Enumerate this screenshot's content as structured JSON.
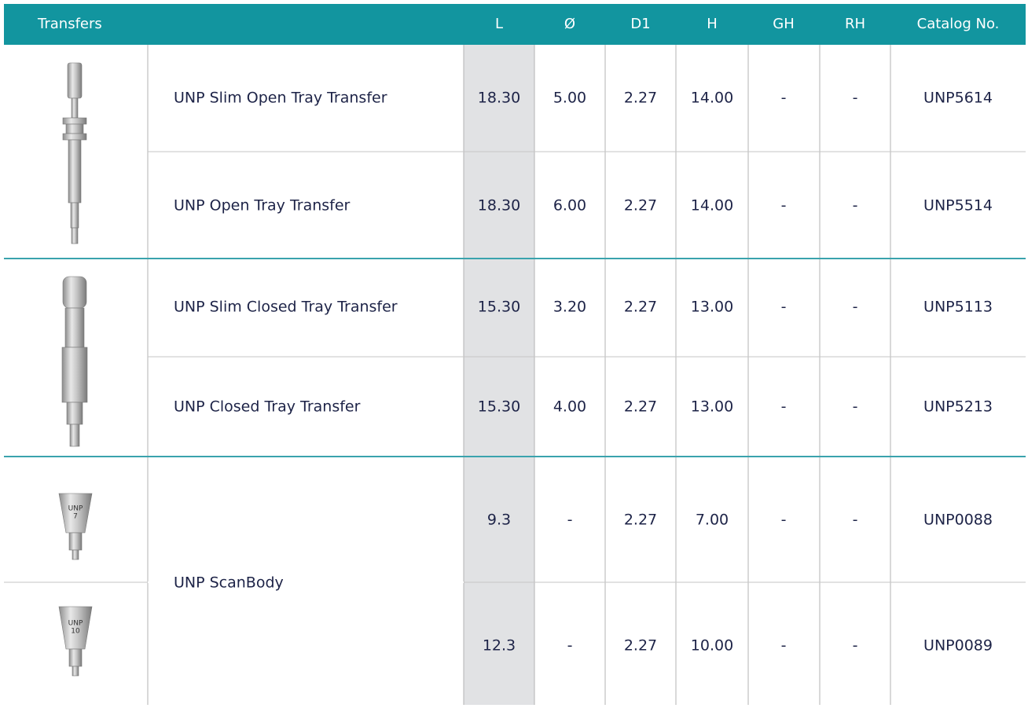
{
  "table": {
    "header": [
      "Transfers",
      "L",
      "Ø",
      "D1",
      "H",
      "GH",
      "RH",
      "Catalog No."
    ],
    "rows": [
      [
        "UNP Slim Open Tray Transfer",
        "18.30",
        "5.00",
        "2.27",
        "14.00",
        "-",
        "-",
        "UNP5614"
      ],
      [
        "UNP Open Tray Transfer",
        "18.30",
        "6.00",
        "2.27",
        "14.00",
        "-",
        "-",
        "UNP5514"
      ],
      [
        "UNP Slim Closed Tray Transfer",
        "15.30",
        "3.20",
        "2.27",
        "13.00",
        "-",
        "-",
        "UNP5113"
      ],
      [
        "UNP Closed Tray Transfer",
        "15.30",
        "4.00",
        "2.27",
        "13.00",
        "-",
        "-",
        "UNP5213"
      ]
    ],
    "scanbody": {
      "name": "UNP ScanBody",
      "rows": [
        [
          "9.3",
          "-",
          "2.27",
          "7.00",
          "-",
          "-",
          "UNP0088"
        ],
        [
          "12.3",
          "-",
          "2.27",
          "10.00",
          "-",
          "-",
          "UNP0089"
        ]
      ],
      "image_labels": [
        [
          "UNP",
          "7"
        ],
        [
          "UNP",
          "10"
        ]
      ]
    }
  }
}
